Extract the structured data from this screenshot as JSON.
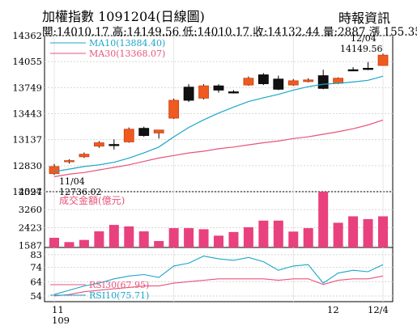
{
  "header": {
    "title": "加權指數 1091204(日線圖)",
    "source": "時報資訊",
    "info_line": "開:14010.17 高:14149.56 低:14010.17 收:14132.44 量:2887 漲 155.35"
  },
  "chart_data": [
    {
      "type": "candlestick",
      "panel": "price",
      "legend": [
        {
          "label": "MA10(13884.40)",
          "color": "#1aa6c9"
        },
        {
          "label": "MA30(13368.07)",
          "color": "#e8537a"
        }
      ],
      "y_ticks": [
        12524,
        12830,
        13137,
        13443,
        13749,
        14055,
        14362
      ],
      "ylim": [
        12524,
        14362
      ],
      "candles": [
        {
          "open": 12736,
          "high": 12850,
          "low": 12720,
          "close": 12820
        },
        {
          "open": 12880,
          "high": 12905,
          "low": 12855,
          "close": 12890
        },
        {
          "open": 12935,
          "high": 12985,
          "low": 12920,
          "close": 12965
        },
        {
          "open": 13060,
          "high": 13120,
          "low": 13040,
          "close": 13100
        },
        {
          "open": 13080,
          "high": 13140,
          "low": 13020,
          "close": 13080
        },
        {
          "open": 13110,
          "high": 13280,
          "low": 13100,
          "close": 13260
        },
        {
          "open": 13270,
          "high": 13290,
          "low": 13170,
          "close": 13185
        },
        {
          "open": 13215,
          "high": 13250,
          "low": 13150,
          "close": 13250
        },
        {
          "open": 13390,
          "high": 13620,
          "low": 13380,
          "close": 13600
        },
        {
          "open": 13755,
          "high": 13790,
          "low": 13580,
          "close": 13600
        },
        {
          "open": 13625,
          "high": 13790,
          "low": 13610,
          "close": 13770
        },
        {
          "open": 13770,
          "high": 13790,
          "low": 13690,
          "close": 13720
        },
        {
          "open": 13700,
          "high": 13720,
          "low": 13680,
          "close": 13695
        },
        {
          "open": 13780,
          "high": 13880,
          "low": 13770,
          "close": 13860
        },
        {
          "open": 13900,
          "high": 13920,
          "low": 13780,
          "close": 13795
        },
        {
          "open": 13850,
          "high": 13890,
          "low": 13720,
          "close": 13730
        },
        {
          "open": 13780,
          "high": 13850,
          "low": 13770,
          "close": 13830
        },
        {
          "open": 13820,
          "high": 13860,
          "low": 13810,
          "close": 13840
        },
        {
          "open": 13890,
          "high": 13960,
          "low": 13730,
          "close": 13740
        },
        {
          "open": 13800,
          "high": 13870,
          "low": 13790,
          "close": 13860
        },
        {
          "open": 13960,
          "high": 13990,
          "low": 13950,
          "close": 13960
        },
        {
          "open": 13977,
          "high": 14050,
          "low": 13955,
          "close": 13977
        },
        {
          "open": 14010,
          "high": 14150,
          "low": 14010,
          "close": 14132
        }
      ],
      "ma10": [
        12760,
        12790,
        12820,
        12840,
        12870,
        12920,
        12980,
        13050,
        13170,
        13280,
        13370,
        13450,
        13520,
        13585,
        13630,
        13670,
        13720,
        13760,
        13790,
        13800,
        13815,
        13835,
        13884
      ],
      "ma30": [
        12700,
        12730,
        12750,
        12780,
        12810,
        12840,
        12880,
        12920,
        12950,
        12980,
        13000,
        13030,
        13050,
        13075,
        13100,
        13120,
        13150,
        13170,
        13200,
        13230,
        13265,
        13310,
        13368
      ],
      "annotations": [
        {
          "label": "11/04",
          "value": "12736.02"
        },
        {
          "label": "12/04",
          "value": "14149.56"
        }
      ]
    },
    {
      "type": "bar",
      "panel": "volume",
      "title": "成交金額(億元)",
      "y_ticks": [
        1587,
        2423,
        3260,
        4097
      ],
      "ylim": [
        1500,
        4097
      ],
      "values": [
        1950,
        1750,
        1850,
        2250,
        2550,
        2480,
        2250,
        1800,
        2400,
        2400,
        2350,
        2050,
        2220,
        2440,
        2750,
        2750,
        2240,
        2400,
        4097,
        2650,
        2950,
        2820,
        2950
      ]
    },
    {
      "type": "line",
      "panel": "rsi",
      "y_ticks": [
        54,
        64,
        74,
        83
      ],
      "ylim": [
        50,
        88
      ],
      "series": [
        {
          "name": "RSI30(67.95)",
          "color": "#e8537a",
          "values": [
            54,
            55,
            57,
            58,
            59,
            60,
            61,
            61,
            63,
            64,
            65,
            66,
            66,
            66,
            66,
            65,
            66,
            66,
            62,
            65,
            66,
            66,
            68
          ]
        },
        {
          "name": "RSI10(75.71)",
          "color": "#1aa6c9",
          "values": [
            55,
            58,
            61,
            63,
            66,
            68,
            69,
            67,
            75,
            77,
            82,
            80,
            79,
            81,
            78,
            72,
            75,
            76,
            63,
            70,
            72,
            71,
            76
          ]
        }
      ],
      "x_labels": [
        {
          "text": "11"
        },
        {
          "text": "109"
        },
        {
          "text": "12"
        },
        {
          "text": "12/4"
        }
      ]
    }
  ]
}
